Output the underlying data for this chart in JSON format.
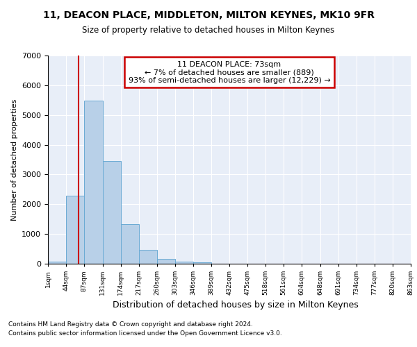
{
  "title": "11, DEACON PLACE, MIDDLETON, MILTON KEYNES, MK10 9FR",
  "subtitle": "Size of property relative to detached houses in Milton Keynes",
  "xlabel": "Distribution of detached houses by size in Milton Keynes",
  "ylabel": "Number of detached properties",
  "footer_line1": "Contains HM Land Registry data © Crown copyright and database right 2024.",
  "footer_line2": "Contains public sector information licensed under the Open Government Licence v3.0.",
  "bar_color": "#b8d0e8",
  "bar_edge_color": "#6aaad4",
  "background_color": "#e8eef8",
  "grid_color": "#ffffff",
  "bin_edges": [
    1,
    44,
    87,
    131,
    174,
    217,
    260,
    303,
    346,
    389,
    432,
    475,
    518,
    561,
    604,
    648,
    691,
    734,
    777,
    820,
    863
  ],
  "bar_heights": [
    80,
    2280,
    5480,
    3450,
    1320,
    470,
    155,
    80,
    50,
    0,
    0,
    0,
    0,
    0,
    0,
    0,
    0,
    0,
    0,
    0
  ],
  "property_size": 73,
  "annotation_line1": "11 DEACON PLACE: 73sqm",
  "annotation_line2": "← 7% of detached houses are smaller (889)",
  "annotation_line3": "93% of semi-detached houses are larger (12,229) →",
  "vline_color": "#cc0000",
  "annotation_edge_color": "#cc0000",
  "ylim_max": 7000,
  "yticks": [
    0,
    1000,
    2000,
    3000,
    4000,
    5000,
    6000,
    7000
  ]
}
